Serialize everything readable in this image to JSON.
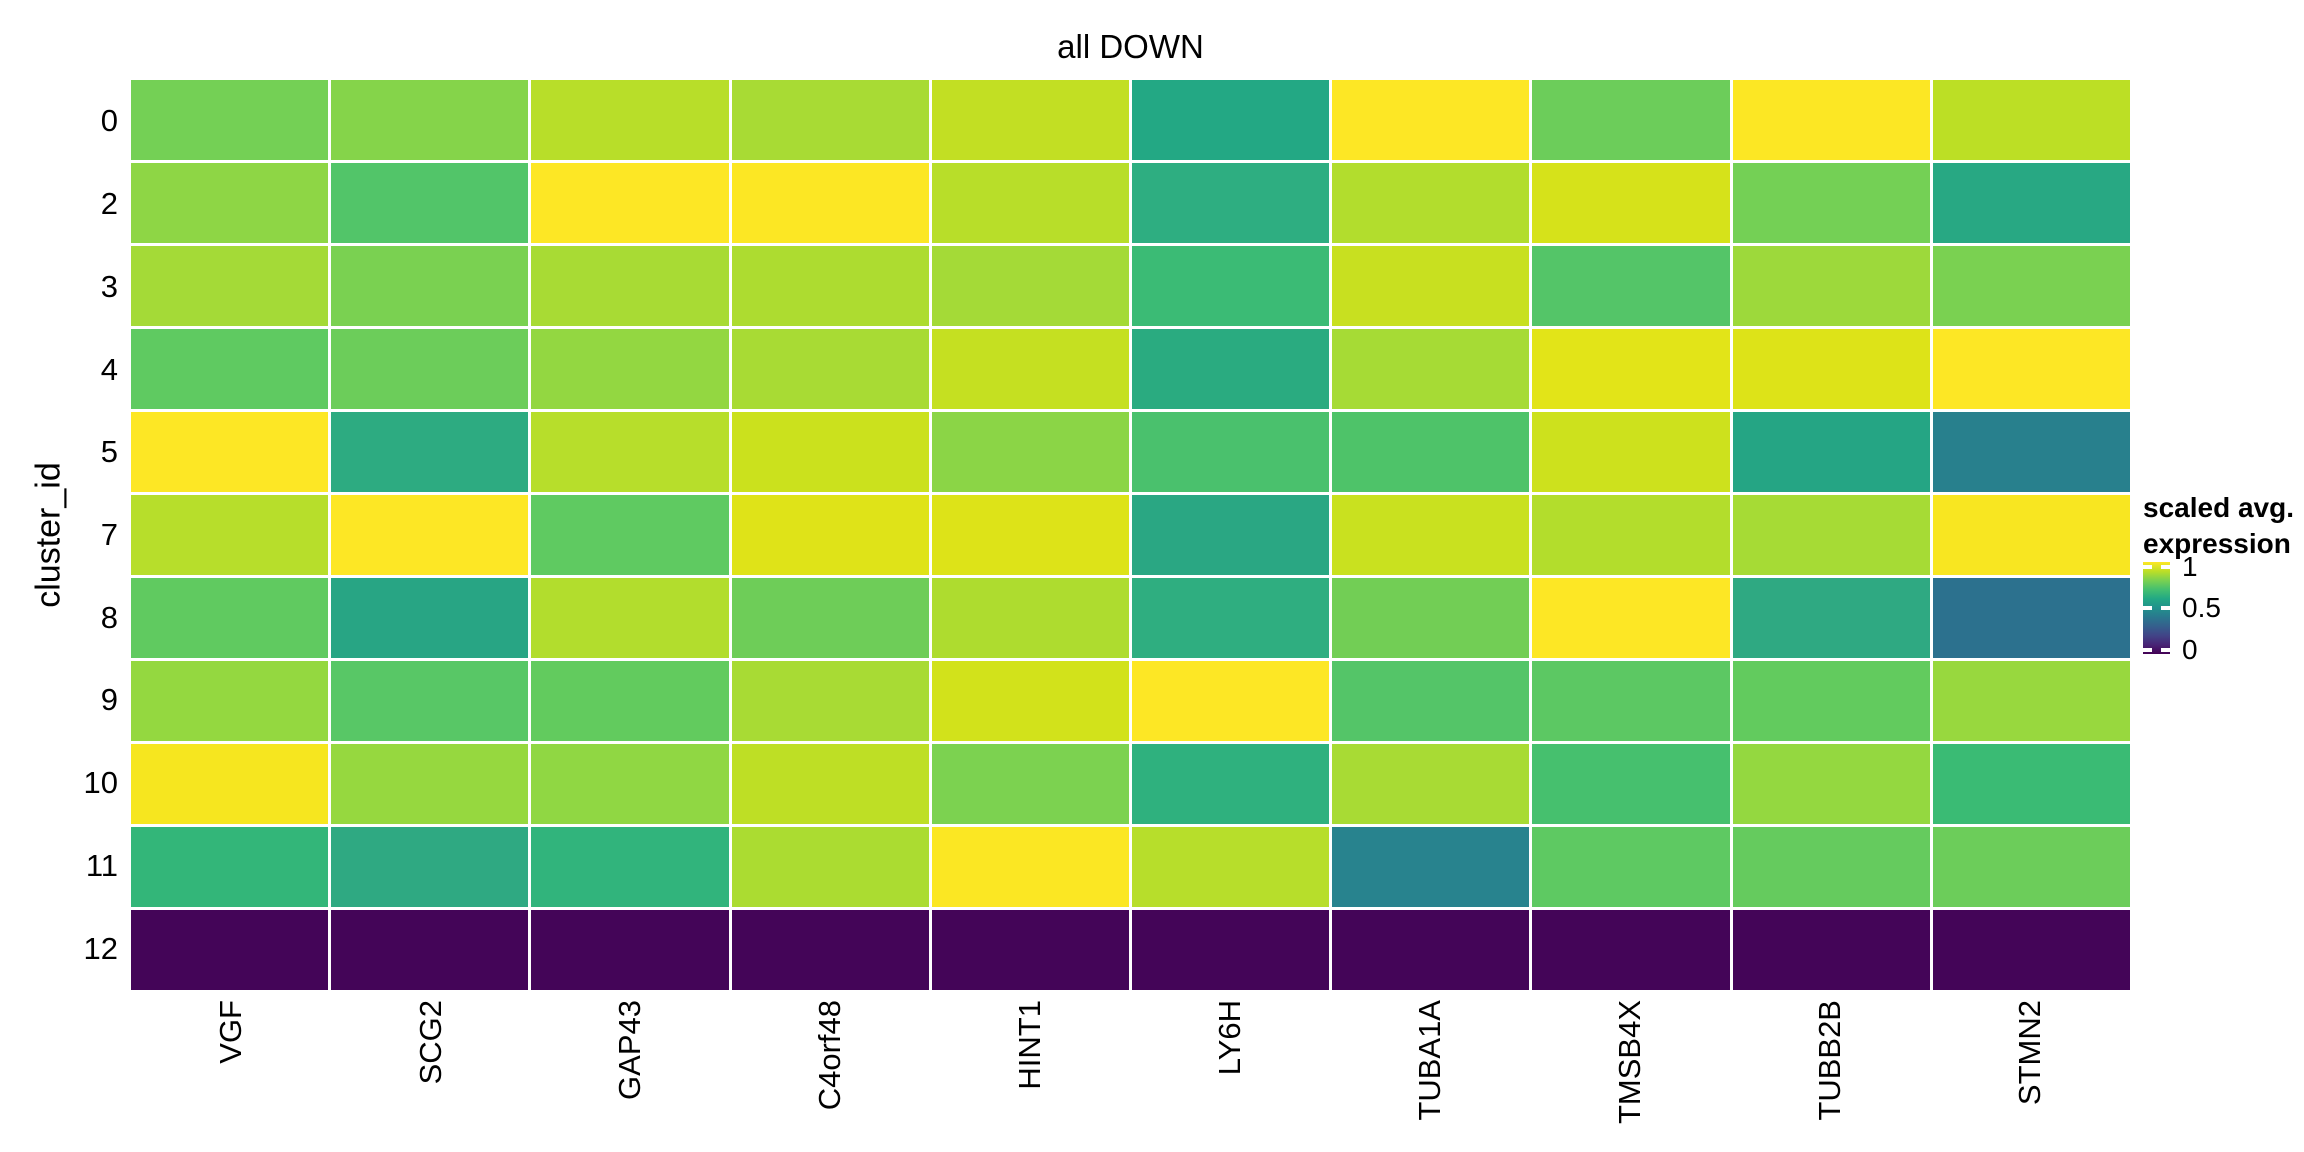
{
  "chart_data": {
    "type": "heatmap",
    "title": "all DOWN",
    "xlabel": "",
    "ylabel": "cluster_id",
    "x_categories": [
      "VGF",
      "SCG2",
      "GAP43",
      "C4orf48",
      "HINT1",
      "LY6H",
      "TUBA1A",
      "TMSB4X",
      "TUBB2B",
      "STMN2"
    ],
    "y_categories": [
      "0",
      "2",
      "3",
      "4",
      "5",
      "7",
      "8",
      "9",
      "10",
      "11",
      "12"
    ],
    "legend": {
      "title_lines": [
        "scaled avg.",
        "expression"
      ],
      "ticks": [
        1,
        0.5,
        0
      ],
      "tick_labels": [
        "1",
        "0.5",
        "0"
      ],
      "colormap": "viridis",
      "position": "right"
    },
    "colormap_stops_top_to_bottom": [
      "#fde725",
      "#bddf26",
      "#7ad151",
      "#44bf70",
      "#22a884",
      "#21918c",
      "#2a788e",
      "#355f8d",
      "#414487",
      "#482475",
      "#440154"
    ],
    "values": [
      [
        0.78,
        0.8,
        0.88,
        0.85,
        0.9,
        0.6,
        1.0,
        0.77,
        0.99,
        0.88
      ],
      [
        0.82,
        0.72,
        1.0,
        1.0,
        0.87,
        0.62,
        0.86,
        0.93,
        0.78,
        0.6
      ],
      [
        0.85,
        0.79,
        0.85,
        0.86,
        0.85,
        0.67,
        0.9,
        0.72,
        0.84,
        0.79
      ],
      [
        0.75,
        0.77,
        0.82,
        0.85,
        0.9,
        0.61,
        0.85,
        0.94,
        0.93,
        1.0
      ],
      [
        1.0,
        0.61,
        0.87,
        0.9,
        0.81,
        0.7,
        0.71,
        0.91,
        0.59,
        0.43
      ],
      [
        0.87,
        1.0,
        0.75,
        0.94,
        0.93,
        0.6,
        0.9,
        0.87,
        0.85,
        0.98
      ],
      [
        0.75,
        0.59,
        0.86,
        0.77,
        0.86,
        0.62,
        0.78,
        1.0,
        0.61,
        0.38
      ],
      [
        0.82,
        0.73,
        0.75,
        0.85,
        0.92,
        1.0,
        0.72,
        0.74,
        0.75,
        0.83
      ],
      [
        0.97,
        0.82,
        0.82,
        0.89,
        0.79,
        0.63,
        0.85,
        0.7,
        0.82,
        0.66
      ],
      [
        0.64,
        0.61,
        0.64,
        0.85,
        0.99,
        0.87,
        0.43,
        0.74,
        0.75,
        0.77
      ],
      [
        0.0,
        0.0,
        0.0,
        0.0,
        0.0,
        0.0,
        0.0,
        0.0,
        0.0,
        0.0
      ]
    ],
    "cell_colors": [
      [
        "#74d055",
        "#85d44a",
        "#b8de29",
        "#a8db34",
        "#c2df23",
        "#23a884",
        "#fde725",
        "#6ccd5a",
        "#fce724",
        "#bcdf25"
      ],
      [
        "#8ed645",
        "#52c569",
        "#fde725",
        "#fce724",
        "#b8de29",
        "#2eae81",
        "#b2dd2d",
        "#d6e21a",
        "#74d055",
        "#28a883"
      ],
      [
        "#a4da37",
        "#7ad151",
        "#a8db34",
        "#addc30",
        "#a4da37",
        "#3bbb75",
        "#c8e020",
        "#54c568",
        "#9dd93b",
        "#7ad151"
      ],
      [
        "#5fca61",
        "#6ccd5a",
        "#93d741",
        "#a8db34",
        "#c5e021",
        "#2aab80",
        "#a6db35",
        "#e2e418",
        "#dde318",
        "#fde725"
      ],
      [
        "#fde725",
        "#2dab81",
        "#b7de2b",
        "#cbe11d",
        "#8bd546",
        "#4ac16d",
        "#4ec369",
        "#cde11d",
        "#25a584",
        "#28808d"
      ],
      [
        "#b7de2b",
        "#fde725",
        "#5fca61",
        "#dfe318",
        "#dde318",
        "#2aa783",
        "#c9e11f",
        "#b3dd2c",
        "#a6db35",
        "#f8e621"
      ],
      [
        "#60ca60",
        "#28a584",
        "#b2dd2d",
        "#6ecd58",
        "#aedc2f",
        "#2fae80",
        "#72ce55",
        "#fde725",
        "#2fa982",
        "#2c718e"
      ],
      [
        "#94d840",
        "#58c766",
        "#62cb5e",
        "#a8db34",
        "#d2e21b",
        "#fde725",
        "#54c568",
        "#5cc863",
        "#62cb5e",
        "#98d83e"
      ],
      [
        "#f6e61f",
        "#96d83f",
        "#90d743",
        "#bedf25",
        "#7cd250",
        "#2fb17e",
        "#a8db34",
        "#46c06e",
        "#94d840",
        "#3abb74"
      ],
      [
        "#33b679",
        "#2fa982",
        "#31b47c",
        "#abdc31",
        "#fbe723",
        "#b7de2b",
        "#28838e",
        "#5ec962",
        "#65cb5e",
        "#6ccd5a"
      ],
      [
        "#440558",
        "#440558",
        "#440558",
        "#440558",
        "#440558",
        "#440558",
        "#440558",
        "#440558",
        "#440558",
        "#440558"
      ]
    ],
    "grid": false,
    "value_range": [
      0,
      1
    ]
  }
}
